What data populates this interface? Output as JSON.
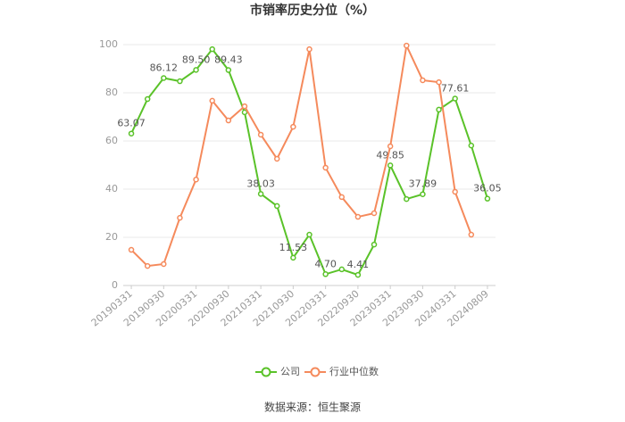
{
  "chart_data": {
    "type": "line",
    "title": "市销率历史分位（%）",
    "categories": [
      "20190331",
      null,
      "20190930",
      null,
      "20200331",
      null,
      "20200930",
      null,
      "20210331",
      null,
      "20210930",
      null,
      "20220331",
      null,
      "20220930",
      null,
      "20230331",
      null,
      "20230930",
      null,
      "20240331",
      null,
      "20240809"
    ],
    "series": [
      {
        "name": "公司",
        "color": "#5ac229",
        "values": [
          63.07,
          77.4,
          86.12,
          84.8,
          89.5,
          98.1,
          89.43,
          71.9,
          38.03,
          33,
          11.53,
          21.1,
          4.7,
          6.7,
          4.41,
          17,
          49.85,
          35.9,
          37.89,
          73,
          77.61,
          58.1,
          36.05
        ],
        "value_labels": [
          "63.07",
          null,
          "86.12",
          null,
          "89.50",
          null,
          "89.43",
          null,
          "38.03",
          null,
          "11.53",
          null,
          "4.70",
          null,
          "4.41",
          null,
          "49.85",
          null,
          "37.89",
          null,
          "77.61",
          null,
          "36.05"
        ]
      },
      {
        "name": "行业中位数",
        "color": "#f58a5c",
        "values": [
          14.8,
          8.1,
          8.9,
          28.1,
          44,
          76.7,
          68.5,
          74.4,
          62.6,
          52.6,
          65.9,
          98.1,
          48.9,
          36.7,
          28.5,
          30,
          57.8,
          99.6,
          85.2,
          84.4,
          38.9,
          21.1,
          null
        ]
      }
    ],
    "ylim": [
      0,
      100
    ],
    "yticks": [
      0,
      20,
      40,
      60,
      80,
      100
    ],
    "grid": true,
    "source": "数据来源：恒生聚源"
  }
}
